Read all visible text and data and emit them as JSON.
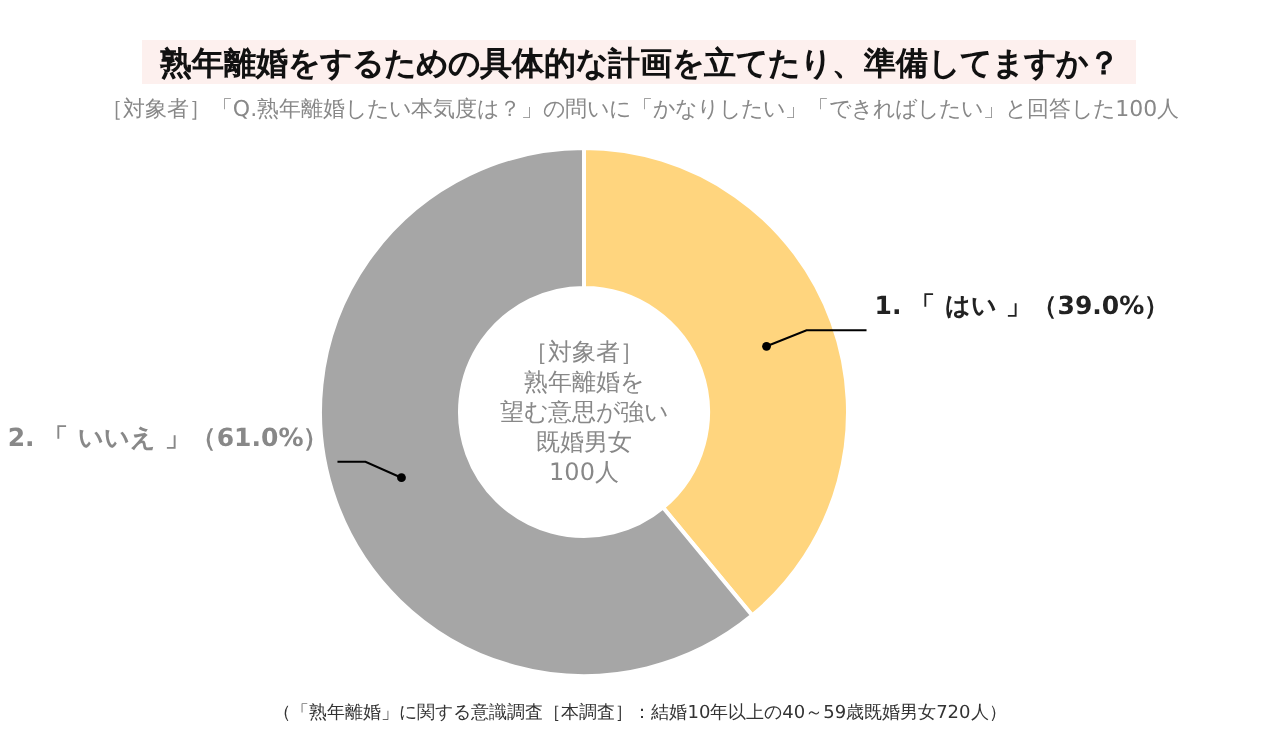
{
  "chart_data": {
    "type": "donut",
    "title": "熟年離婚をするための具体的な計画を立てたり、準備してますか？",
    "subtitle": "［対象者］「Q.熟年離婚したい本気度は？」の問いに「かなりしたい」「できればしたい」と回答した100人",
    "categories": [
      "1. 「 はい 」",
      "2. 「 いいえ 」"
    ],
    "values": [
      39.0,
      61.0
    ],
    "value_labels": [
      "（39.0%）",
      "（61.0%）"
    ],
    "colors": [
      "#ffd57e",
      "#a6a6a6"
    ],
    "annotations": [
      "［対象者］",
      "熟年離婚を",
      "望む意思が強い",
      "既婚男女",
      "100人",
      "（「熟年離婚」に関する意識調査［本調査］：結婚10年以上の40～59歳既婚男女720人）"
    ]
  }
}
